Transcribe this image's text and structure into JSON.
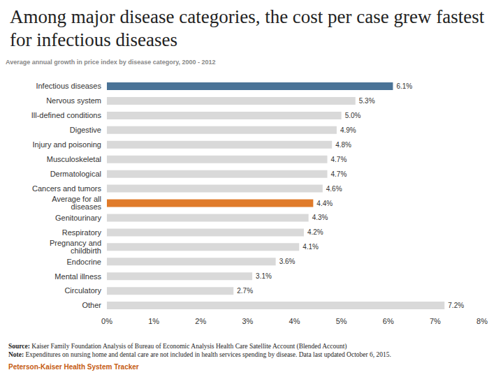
{
  "chart_data": {
    "type": "bar",
    "orientation": "horizontal",
    "title": "Among major disease categories, the cost per case grew fastest for infectious diseases",
    "subtitle": "Average annual growth in price index by disease category, 2000 - 2012",
    "categories": [
      "Infectious diseases",
      "Nervous system",
      "Ill-defined conditions",
      "Digestive",
      "Injury and poisoning",
      "Musculoskeletal",
      "Dermatological",
      "Cancers and tumors",
      "Average for all diseases",
      "Genitourinary",
      "Respiratory",
      "Pregnancy and childbirth",
      "Endocrine",
      "Mental illness",
      "Circulatory",
      "Other"
    ],
    "values": [
      6.1,
      5.3,
      5.0,
      4.9,
      4.8,
      4.7,
      4.7,
      4.6,
      4.4,
      4.3,
      4.2,
      4.1,
      3.6,
      3.1,
      2.7,
      7.2
    ],
    "value_labels": [
      "6.1%",
      "5.3%",
      "5.0%",
      "4.9%",
      "4.8%",
      "4.7%",
      "4.7%",
      "4.6%",
      "4.4%",
      "4.3%",
      "4.2%",
      "4.1%",
      "3.6%",
      "3.1%",
      "2.7%",
      "7.2%"
    ],
    "colors": [
      "#4a7397",
      "#d9d9d9",
      "#d9d9d9",
      "#d9d9d9",
      "#d9d9d9",
      "#d9d9d9",
      "#d9d9d9",
      "#d9d9d9",
      "#e07b2a",
      "#d9d9d9",
      "#d9d9d9",
      "#d9d9d9",
      "#d9d9d9",
      "#d9d9d9",
      "#d9d9d9",
      "#d9d9d9"
    ],
    "data_labels": true,
    "grid": false,
    "xlim": [
      0,
      8
    ],
    "xticks": [
      {
        "value": 0,
        "label": "0%"
      },
      {
        "value": 1,
        "label": "1%"
      },
      {
        "value": 2,
        "label": "2%"
      },
      {
        "value": 3,
        "label": "3%"
      },
      {
        "value": 4,
        "label": "4%"
      },
      {
        "value": 5,
        "label": "5%"
      },
      {
        "value": 6,
        "label": "6%"
      },
      {
        "value": 7,
        "label": "7%"
      },
      {
        "value": 8,
        "label": "8%"
      }
    ],
    "annotations": [
      "Source: Kaiser Family Foundation Analysis of Bureau of Economic Analysis Health Care Satellite Account (Blended Account)",
      "Note: Expenditures on nursing home and dental care are not included in health services spending by disease. Data last updated October 6, 2015."
    ],
    "credit": "Peterson-Kaiser Health System Tracker"
  }
}
